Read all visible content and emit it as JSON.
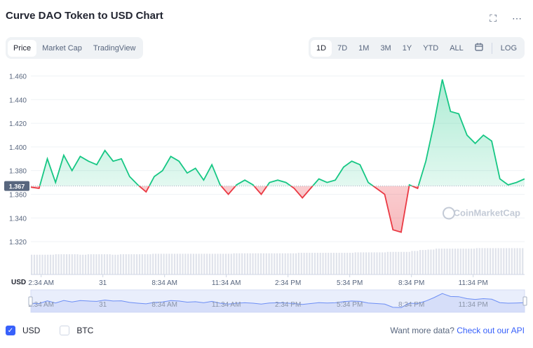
{
  "title": "Curve DAO Token to USD Chart",
  "icons": {
    "fullscreen": "fullscreen-icon",
    "more": "more-icon",
    "calendar": "calendar-icon"
  },
  "tabs": [
    "Price",
    "Market Cap",
    "TradingView"
  ],
  "active_tab": "Price",
  "ranges": [
    "1D",
    "7D",
    "1M",
    "3M",
    "1Y",
    "YTD",
    "ALL"
  ],
  "active_range": "1D",
  "log_label": "LOG",
  "currency_label": "USD",
  "watermark": "CoinMarketCap",
  "footer": {
    "usd_label": "USD",
    "btc_label": "BTC",
    "usd_checked": true,
    "btc_checked": false,
    "api_text": "Want more data?",
    "api_link": "Check out our API"
  },
  "colors": {
    "up": "#16c784",
    "down": "#ea3943",
    "accent": "#3861fb"
  },
  "chart_data": {
    "type": "line",
    "ylim": [
      1.31,
      1.465
    ],
    "yticks": [
      1.32,
      1.34,
      1.36,
      1.38,
      1.4,
      1.42,
      1.44,
      1.46
    ],
    "ytick_labels": [
      "1.320",
      "1.340",
      "1.360",
      "1.380",
      "1.400",
      "1.420",
      "1.440",
      "1.460"
    ],
    "xlim": [
      0,
      24
    ],
    "xticks": [
      0.5,
      3.5,
      6.5,
      9.5,
      12.5,
      15.5,
      18.5,
      21.5
    ],
    "xtick_labels": [
      "2:34 AM",
      "31",
      "8:34 AM",
      "11:34 AM",
      "2:34 PM",
      "5:34 PM",
      "8:34 PM",
      "11:34 PM"
    ],
    "reference_price": 1.367,
    "reference_label": "1.367",
    "x": [
      0,
      0.4,
      0.8,
      1.2,
      1.6,
      2.0,
      2.4,
      2.8,
      3.2,
      3.6,
      4.0,
      4.4,
      4.8,
      5.2,
      5.6,
      6.0,
      6.4,
      6.8,
      7.2,
      7.6,
      8.0,
      8.4,
      8.8,
      9.2,
      9.6,
      10.0,
      10.4,
      10.8,
      11.2,
      11.6,
      12.0,
      12.4,
      12.8,
      13.2,
      13.6,
      14.0,
      14.4,
      14.8,
      15.2,
      15.6,
      16.0,
      16.4,
      16.8,
      17.2,
      17.6,
      18.0,
      18.4,
      18.8,
      19.2,
      19.6,
      20.0,
      20.4,
      20.8,
      21.2,
      21.6,
      22.0,
      22.4,
      22.8,
      23.2,
      23.6,
      24.0
    ],
    "y": [
      1.366,
      1.365,
      1.39,
      1.37,
      1.393,
      1.38,
      1.392,
      1.388,
      1.385,
      1.397,
      1.388,
      1.39,
      1.375,
      1.368,
      1.362,
      1.375,
      1.38,
      1.392,
      1.388,
      1.378,
      1.382,
      1.372,
      1.385,
      1.368,
      1.36,
      1.368,
      1.372,
      1.368,
      1.36,
      1.37,
      1.372,
      1.37,
      1.365,
      1.357,
      1.365,
      1.373,
      1.37,
      1.372,
      1.383,
      1.388,
      1.385,
      1.37,
      1.365,
      1.36,
      1.33,
      1.328,
      1.368,
      1.365,
      1.388,
      1.42,
      1.457,
      1.43,
      1.428,
      1.41,
      1.403,
      1.41,
      1.405,
      1.373,
      1.368,
      1.37,
      1.373
    ],
    "volume": [
      0.42,
      0.42,
      0.42,
      0.43,
      0.43,
      0.43,
      0.42,
      0.43,
      0.43,
      0.43,
      0.42,
      0.43,
      0.43,
      0.43,
      0.43,
      0.44,
      0.44,
      0.44,
      0.44,
      0.44,
      0.44,
      0.44,
      0.44,
      0.44,
      0.44,
      0.45,
      0.45,
      0.45,
      0.45,
      0.45,
      0.45,
      0.45,
      0.45,
      0.46,
      0.46,
      0.46,
      0.46,
      0.46,
      0.46,
      0.46,
      0.47,
      0.47,
      0.47,
      0.47,
      0.48,
      0.48,
      0.48,
      0.5,
      0.52,
      0.53,
      0.55,
      0.55,
      0.55,
      0.55,
      0.55,
      0.56,
      0.56,
      0.56,
      0.56,
      0.56,
      0.56
    ],
    "navigator_labels": [
      "2:34 AM",
      "31",
      "8:34 AM",
      "11:34 AM",
      "2:34 PM",
      "5:34 PM",
      "8:34 PM",
      "11:34 PM"
    ]
  }
}
